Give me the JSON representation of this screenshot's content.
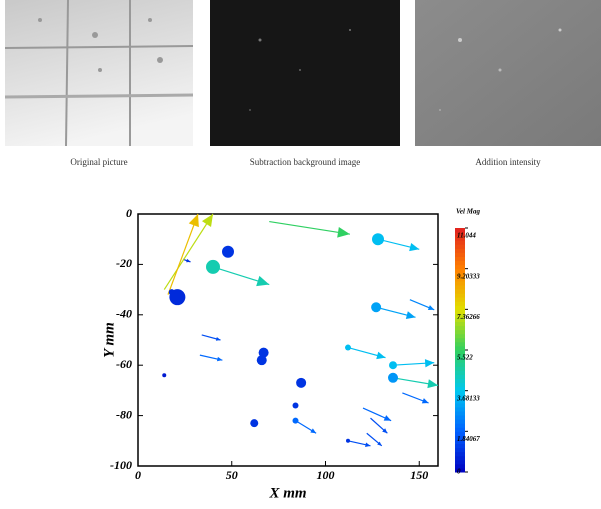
{
  "panels": [
    {
      "caption": "Original picture"
    },
    {
      "caption": "Subtraction background image"
    },
    {
      "caption": "Addition intensity"
    }
  ],
  "chart_data": {
    "type": "vector-scatter",
    "xlabel": "X mm",
    "ylabel": "Y mm",
    "xlim": [
      0,
      160
    ],
    "xticks": [
      0,
      50,
      100,
      150
    ],
    "ylim": [
      -100,
      0
    ],
    "yticks": [
      0,
      -20,
      -40,
      -60,
      -80,
      -100
    ],
    "colorbar_title": "Vel Mag",
    "clim": [
      0,
      11.044
    ],
    "cticks": [
      11.044,
      9.20333,
      7.36266,
      5.522,
      3.68133,
      1.84067,
      0
    ],
    "colormap": [
      "#0000c0",
      "#0060ff",
      "#00c8f0",
      "#30d060",
      "#e0e000",
      "#ff8000",
      "#e02020"
    ],
    "particles": {
      "x": [
        48,
        40,
        21,
        128,
        127,
        67,
        66,
        87,
        84,
        62,
        136,
        136,
        112,
        84,
        14,
        112,
        18
      ],
      "y": [
        -15,
        -21,
        -33,
        -10,
        -37,
        -55,
        -58,
        -67,
        -76,
        -83,
        -60,
        -65,
        -53,
        -82,
        -64,
        -90,
        -31
      ],
      "size": [
        6,
        7,
        8,
        6,
        5,
        5,
        5,
        5,
        3,
        4,
        4,
        5,
        3,
        3,
        2,
        2,
        3
      ],
      "magnitude": [
        1,
        4.5,
        0.8,
        3.5,
        3,
        1,
        1,
        1,
        1,
        1,
        3.5,
        2.8,
        3.5,
        2,
        0.5,
        1,
        0.8
      ]
    },
    "arrows": {
      "x": [
        70,
        40,
        128,
        127,
        145,
        112,
        136,
        136,
        34,
        33,
        84,
        112,
        120,
        122,
        124,
        141,
        24,
        14,
        16
      ],
      "y": [
        -3,
        -21,
        -10,
        -37,
        -34,
        -53,
        -60,
        -65,
        -48,
        -56,
        -82,
        -90,
        -77,
        -87,
        -81,
        -71,
        -18,
        -30,
        -32
      ],
      "x_end": [
        113,
        70,
        150,
        148,
        158,
        132,
        158,
        160,
        44,
        45,
        95,
        124,
        135,
        130,
        133,
        155,
        28,
        40,
        32
      ],
      "y_end": [
        -8,
        -28,
        -14,
        -41,
        -38,
        -57,
        -59,
        -68,
        -50,
        -58,
        -87,
        -92,
        -82,
        -92,
        -87,
        -75,
        -19,
        0,
        0
      ],
      "magnitude": [
        5.5,
        4.5,
        3.5,
        3,
        2.5,
        3.5,
        3.5,
        4.5,
        1.5,
        2,
        2,
        1.5,
        2,
        1.5,
        1.5,
        2,
        1,
        7,
        8
      ]
    }
  }
}
